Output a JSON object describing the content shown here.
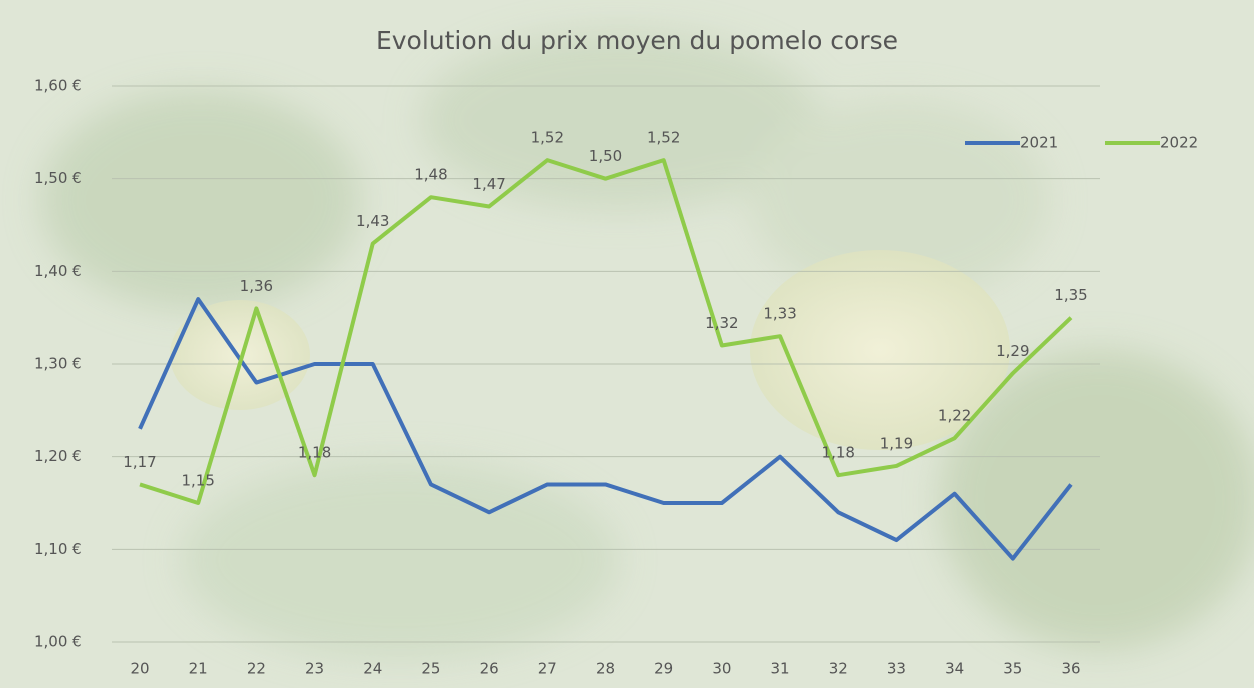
{
  "chart_data": {
    "type": "line",
    "title": "Evolution du prix moyen du pomelo corse",
    "categories": [
      "20",
      "21",
      "22",
      "23",
      "24",
      "25",
      "26",
      "27",
      "28",
      "29",
      "30",
      "31",
      "32",
      "33",
      "34",
      "35",
      "36"
    ],
    "series": [
      {
        "name": "2021",
        "color": "#4170b8",
        "values": [
          1.23,
          1.37,
          1.28,
          1.3,
          1.3,
          1.17,
          1.14,
          1.17,
          1.17,
          1.15,
          1.15,
          1.2,
          1.14,
          1.11,
          1.16,
          1.09,
          1.17
        ]
      },
      {
        "name": "2022",
        "color": "#8fcb4a",
        "values": [
          1.17,
          1.15,
          1.36,
          1.18,
          1.43,
          1.48,
          1.47,
          1.52,
          1.5,
          1.52,
          1.32,
          1.33,
          1.18,
          1.19,
          1.22,
          1.29,
          1.35
        ],
        "value_labels": [
          "1,17",
          "1,15",
          "1,36",
          "1,18",
          "1,43",
          "1,48",
          "1,47",
          "1,52",
          "1,50",
          "1,52",
          "1,32",
          "1,33",
          "1,18",
          "1,19",
          "1,22",
          "1,29",
          "1,35"
        ]
      }
    ],
    "ylim": [
      1.0,
      1.6
    ],
    "yticks": [
      {
        "value": 1.0,
        "label": "1,00 €"
      },
      {
        "value": 1.1,
        "label": "1,10 €"
      },
      {
        "value": 1.2,
        "label": "1,20 €"
      },
      {
        "value": 1.3,
        "label": "1,30 €"
      },
      {
        "value": 1.4,
        "label": "1,40 €"
      },
      {
        "value": 1.5,
        "label": "1,50 €"
      },
      {
        "value": 1.6,
        "label": "1,60 €"
      }
    ],
    "grid": true,
    "legend": "top-right"
  }
}
